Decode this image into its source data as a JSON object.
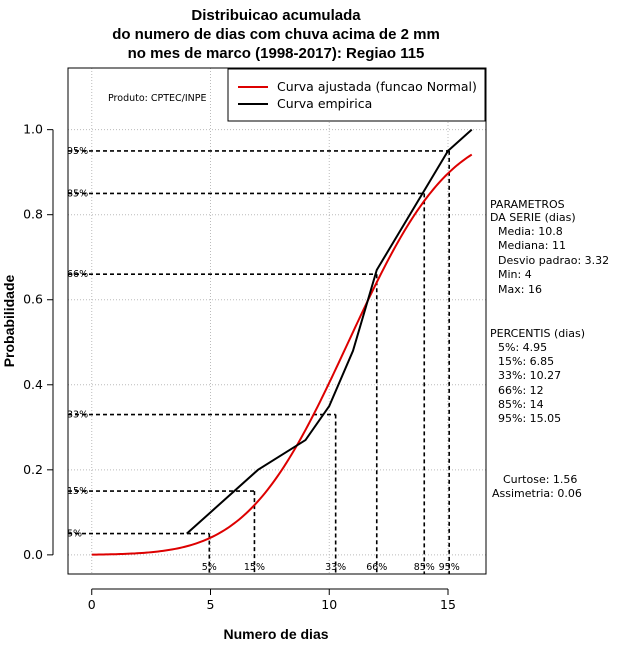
{
  "chart_data": {
    "type": "line",
    "title_lines": [
      "Distribuicao acumulada",
      "do numero de dias com chuva acima de 2 mm",
      "no mes de marco (1998-2017): Regiao 115"
    ],
    "xlabel": "Numero de dias",
    "ylabel": "Probabilidade",
    "xlim": [
      -1,
      16.6
    ],
    "ylim": [
      -0.045,
      1.145
    ],
    "x_ticks": [
      0,
      5,
      10,
      15
    ],
    "x_tick_labels": [
      "0",
      "5",
      "10",
      "15"
    ],
    "y_ticks": [
      0.0,
      0.2,
      0.4,
      0.6,
      0.8,
      1.0
    ],
    "y_tick_labels": [
      "0.0",
      "0.2",
      "0.4",
      "0.6",
      "0.8",
      "1.0"
    ],
    "grid": true,
    "producer_note": "Produto: CPTEC/INPE",
    "colors": {
      "fitted": "#dd0000",
      "empirical": "#000000",
      "grid": "#bbbbbb"
    },
    "series": [
      {
        "name": "Curva ajustada (funcao Normal)",
        "kind": "normal_cdf",
        "mean": 10.8,
        "sd": 3.32,
        "x_from": 0,
        "x_to": 16
      },
      {
        "name": "Curva empirica",
        "kind": "polyline",
        "x": [
          4,
          5,
          7,
          9,
          10,
          11,
          12,
          15,
          16
        ],
        "y": [
          0.05,
          0.1,
          0.2,
          0.27,
          0.35,
          0.48,
          0.67,
          0.95,
          1.0
        ]
      }
    ],
    "percentiles": [
      {
        "label": "5%",
        "prob": 0.05,
        "value": 4.95
      },
      {
        "label": "15%",
        "prob": 0.15,
        "value": 6.85
      },
      {
        "label": "33%",
        "prob": 0.33,
        "value": 10.27
      },
      {
        "label": "66%",
        "prob": 0.66,
        "value": 12
      },
      {
        "label": "85%",
        "prob": 0.85,
        "value": 14
      },
      {
        "label": "95%",
        "prob": 0.95,
        "value": 15.05
      }
    ],
    "parameters": {
      "heading_line1": "PARAMETROS",
      "heading_line2": "DA SERIE (dias)",
      "media": "Media: 10.8",
      "mediana": "Mediana: 11",
      "desvio": "Desvio padrao: 3.32",
      "min": "Min: 4",
      "max": "Max: 16"
    },
    "percentis_panel": {
      "heading": "PERCENTIS (dias)",
      "items": [
        "5%: 4.95",
        "15%: 6.85",
        "33%: 10.27",
        "66%: 12",
        "85%: 14",
        "95%: 15.05"
      ]
    },
    "shape": {
      "curtose": "Curtose: 1.56",
      "assimetria": "Assimetria: 0.06"
    }
  }
}
